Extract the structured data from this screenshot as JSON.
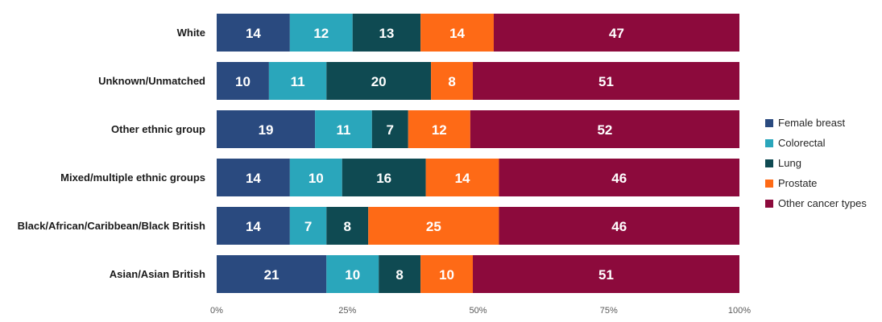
{
  "chart_data": {
    "type": "bar",
    "orientation": "horizontal",
    "stacked": "percent",
    "categories": [
      "White",
      "Unknown/Unmatched",
      "Other ethnic group",
      "Mixed/multiple ethnic groups",
      "Black/African/Caribbean/Black British",
      "Asian/Asian British"
    ],
    "series": [
      {
        "name": "Female breast",
        "color": "#2a4a7f",
        "values": [
          14,
          10,
          19,
          14,
          14,
          21
        ]
      },
      {
        "name": "Colorectal",
        "color": "#2aa6bb",
        "values": [
          12,
          11,
          11,
          10,
          7,
          10
        ]
      },
      {
        "name": "Lung",
        "color": "#0f4a52",
        "values": [
          13,
          20,
          7,
          16,
          8,
          8
        ]
      },
      {
        "name": "Prostate",
        "color": "#fe6a16",
        "values": [
          14,
          8,
          12,
          14,
          25,
          10
        ]
      },
      {
        "name": "Other cancer types",
        "color": "#8c0a3c",
        "values": [
          47,
          51,
          52,
          46,
          46,
          51
        ]
      }
    ],
    "x_ticks": [
      "0%",
      "25%",
      "50%",
      "75%",
      "100%"
    ],
    "xlim": [
      0,
      100
    ],
    "grid": false,
    "legend_position": "right"
  }
}
